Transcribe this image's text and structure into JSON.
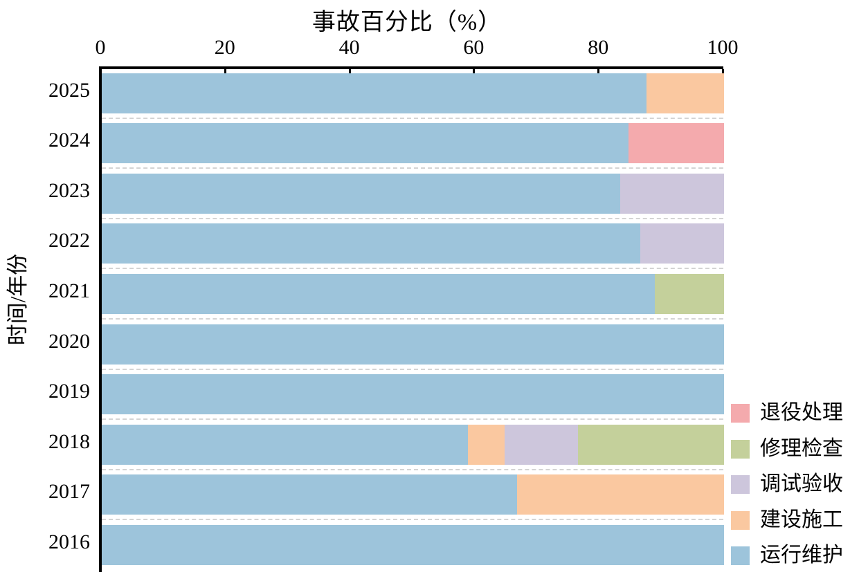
{
  "figure": {
    "title": "事故百分比（%）",
    "ylabel": "时间/年份"
  },
  "colors": {
    "退役处理": "#F4AAAD",
    "修理检查": "#C4D09B",
    "调试验收": "#CDC6DC",
    "建设施工": "#FAC8A0",
    "运行维护": "#9DC4DB"
  },
  "legend": {
    "items": [
      "退役处理",
      "修理检查",
      "调试验收",
      "建设施工",
      "运行维护"
    ]
  },
  "chart_data": {
    "type": "bar",
    "orientation": "horizontal",
    "stacked": true,
    "title": "事故百分比（%）",
    "xlabel": "事故百分比（%）",
    "ylabel": "时间/年份",
    "xlim": [
      0,
      100
    ],
    "xticks": [
      0,
      20,
      40,
      60,
      80,
      100
    ],
    "grid": "dashed-category-separator-lines",
    "legend_position": "right",
    "legend_order": [
      "退役处理",
      "修理检查",
      "调试验收",
      "建设施工",
      "运行维护"
    ],
    "categories": [
      "2025",
      "2024",
      "2023",
      "2022",
      "2021",
      "2020",
      "2019",
      "2018",
      "2017",
      "2016"
    ],
    "series": [
      {
        "name": "运行维护",
        "values": [
          87.5,
          84.6,
          83.3,
          86.5,
          88.9,
          100,
          100,
          58.8,
          66.7,
          100
        ]
      },
      {
        "name": "建设施工",
        "values": [
          12.5,
          0,
          0,
          0,
          0,
          0,
          0,
          5.9,
          33.3,
          0
        ]
      },
      {
        "name": "调试验收",
        "values": [
          0,
          0,
          16.7,
          13.5,
          0,
          0,
          0,
          11.8,
          0,
          0
        ]
      },
      {
        "name": "修理检查",
        "values": [
          0,
          0,
          0,
          0,
          11.1,
          0,
          0,
          23.5,
          0,
          0
        ]
      },
      {
        "name": "退役处理",
        "values": [
          0,
          15.4,
          0,
          0,
          0,
          0,
          0,
          0,
          0,
          0
        ]
      }
    ]
  }
}
